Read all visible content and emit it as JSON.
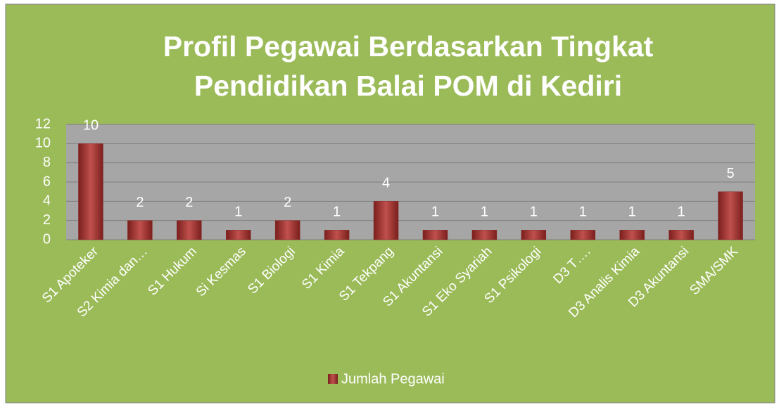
{
  "chart_data": {
    "type": "bar",
    "title": "Profil Pegawai Berdasarkan Tingkat Pendidikan Balai POM di Kediri",
    "categories": [
      "S1 Apoteker",
      "S2 Kimia dan…",
      "S1 Hukum",
      "Si Kesmas",
      "S1 Biologi",
      "S1 Kimia",
      "S1 Tekpang",
      "S1 Akuntansi",
      "S1 Eko Syariah",
      "S1 Psikologi",
      "D3 T….",
      "D3 Analis Kimia",
      "D3 Akuntansi",
      "SMA/SMK"
    ],
    "series": [
      {
        "name": "Jumlah Pegawai",
        "color": "#c0504d",
        "values": [
          10,
          2,
          2,
          1,
          2,
          1,
          4,
          1,
          1,
          1,
          1,
          1,
          1,
          5
        ]
      }
    ],
    "ylim": [
      0,
      12
    ],
    "yticks": [
      0,
      2,
      4,
      6,
      8,
      10,
      12
    ],
    "grid": true,
    "legend": "bottom"
  }
}
